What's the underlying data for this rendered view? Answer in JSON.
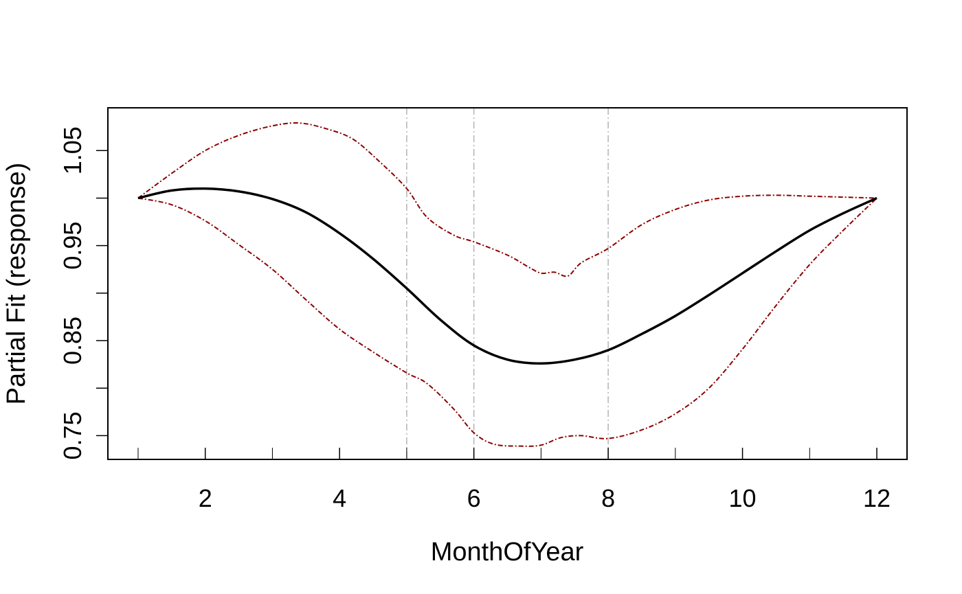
{
  "chart_data": {
    "type": "line",
    "title": "",
    "xlabel": "MonthOfYear",
    "ylabel": "Partial Fit (response)",
    "xlim": [
      0.55,
      12.45
    ],
    "ylim": [
      0.725,
      1.095
    ],
    "x_ticks": [
      2,
      4,
      6,
      8,
      10,
      12
    ],
    "x_tick_labels": [
      "2",
      "4",
      "6",
      "8",
      "10",
      "12"
    ],
    "x_minor_ticks": [
      1,
      3,
      5,
      7,
      9,
      11
    ],
    "y_ticks": [
      0.75,
      0.8,
      0.85,
      0.9,
      0.95,
      1.0,
      1.05
    ],
    "y_tick_labels": [
      "0.75",
      "",
      "0.85",
      "",
      "0.95",
      "",
      "1.05"
    ],
    "vertical_reference_lines": [
      5,
      6,
      8
    ],
    "grid": false,
    "legend": "none",
    "colors": {
      "fit": "#000000",
      "band": "#8b0000",
      "reference": "#b3b3b3"
    },
    "series": [
      {
        "role": "fit",
        "x": [
          1,
          1.5,
          2,
          2.5,
          3,
          3.5,
          4,
          4.5,
          5,
          5.5,
          6,
          6.5,
          7,
          7.5,
          8,
          8.5,
          9,
          9.5,
          10,
          10.5,
          11,
          11.5,
          12
        ],
        "y": [
          1.0,
          1.008,
          1.01,
          1.007,
          0.999,
          0.985,
          0.963,
          0.936,
          0.905,
          0.872,
          0.845,
          0.83,
          0.826,
          0.83,
          0.84,
          0.857,
          0.876,
          0.898,
          0.921,
          0.944,
          0.966,
          0.984,
          1.0
        ]
      },
      {
        "role": "upper",
        "x": [
          1,
          1.5,
          2,
          2.5,
          3,
          3.4,
          3.8,
          4.2,
          4.6,
          5,
          5.3,
          5.7,
          6,
          6.5,
          6.8,
          7,
          7.2,
          7.4,
          7.6,
          8,
          8.5,
          9,
          9.5,
          10,
          10.5,
          11,
          11.5,
          12
        ],
        "y": [
          1.0,
          1.026,
          1.05,
          1.066,
          1.076,
          1.079,
          1.073,
          1.062,
          1.038,
          1.01,
          0.98,
          0.961,
          0.954,
          0.94,
          0.928,
          0.921,
          0.922,
          0.918,
          0.932,
          0.947,
          0.972,
          0.988,
          0.998,
          1.002,
          1.003,
          1.002,
          1.001,
          1.0
        ]
      },
      {
        "role": "lower",
        "x": [
          1,
          1.5,
          2,
          2.5,
          3,
          3.5,
          4,
          4.5,
          5,
          5.3,
          5.7,
          6,
          6.3,
          6.7,
          7,
          7.3,
          7.6,
          8,
          8.5,
          9,
          9.5,
          10,
          10.5,
          11,
          11.5,
          12
        ],
        "y": [
          1.0,
          0.993,
          0.976,
          0.951,
          0.925,
          0.893,
          0.862,
          0.838,
          0.816,
          0.805,
          0.778,
          0.753,
          0.741,
          0.739,
          0.74,
          0.748,
          0.75,
          0.747,
          0.756,
          0.773,
          0.8,
          0.841,
          0.887,
          0.93,
          0.966,
          1.0
        ]
      }
    ]
  }
}
